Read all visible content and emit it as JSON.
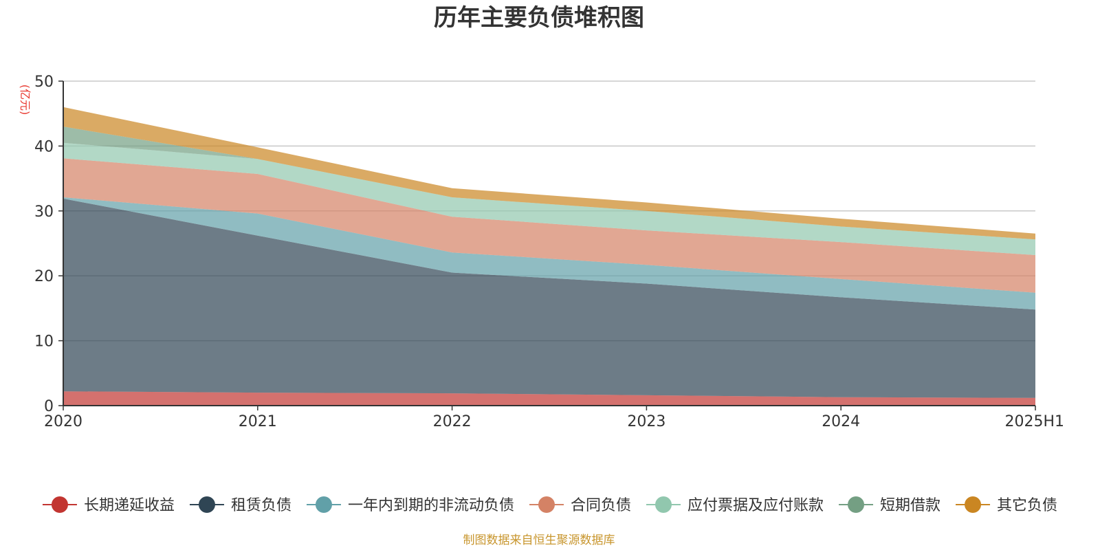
{
  "chart_data": {
    "type": "area",
    "stacked": true,
    "title": "历年主要负债堆积图",
    "unit": "(亿元)",
    "x": [
      "2020",
      "2021",
      "2022",
      "2023",
      "2024",
      "2025H1"
    ],
    "ylim": [
      0,
      50
    ],
    "yticks": [
      0,
      10,
      20,
      30,
      40,
      50
    ],
    "grid": true,
    "legend_position": "bottom",
    "series": [
      {
        "name": "长期递延收益",
        "color": "#c23531",
        "values": [
          2.2,
          2.0,
          1.9,
          1.6,
          1.3,
          1.2
        ]
      },
      {
        "name": "租赁负债",
        "color": "#2f4554",
        "values": [
          29.7,
          24.2,
          18.6,
          17.2,
          15.4,
          13.6
        ]
      },
      {
        "name": "一年内到期的非流动负债",
        "color": "#61a0a8",
        "values": [
          0.2,
          3.4,
          3.1,
          2.9,
          2.8,
          2.6
        ]
      },
      {
        "name": "合同负债",
        "color": "#d48265",
        "values": [
          6.0,
          6.1,
          5.5,
          5.3,
          5.7,
          5.8
        ]
      },
      {
        "name": "应付票据及应付账款",
        "color": "#91c7ae",
        "values": [
          2.4,
          2.3,
          3.0,
          3.0,
          2.4,
          2.4
        ]
      },
      {
        "name": "短期借款",
        "color": "#749f83",
        "values": [
          2.5,
          0.0,
          0.0,
          0.0,
          0.0,
          0.0
        ]
      },
      {
        "name": "其它负债",
        "color": "#ca8622",
        "values": [
          3.0,
          1.8,
          1.4,
          1.3,
          1.2,
          0.9
        ]
      }
    ]
  },
  "footer": {
    "source": "制图数据来自恒生聚源数据库"
  }
}
